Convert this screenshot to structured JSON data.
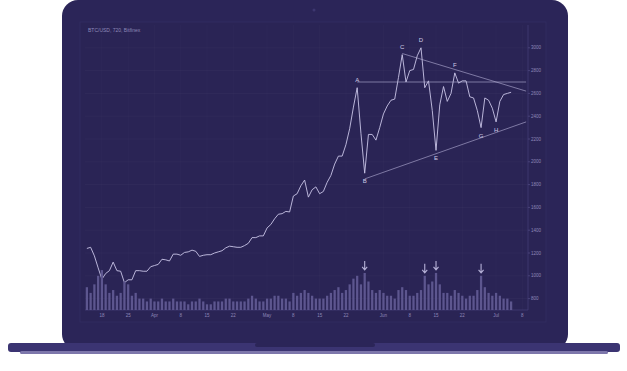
{
  "chart_data": {
    "type": "line",
    "title": "BTC/USD, 720, Bitfinex",
    "categories": [
      null,
      null,
      null,
      null,
      "18",
      null,
      null,
      null,
      null,
      null,
      null,
      "25",
      null,
      null,
      null,
      null,
      null,
      null,
      "Apr",
      null,
      null,
      null,
      null,
      null,
      null,
      "8",
      null,
      null,
      null,
      null,
      null,
      null,
      "15",
      null,
      null,
      null,
      null,
      null,
      null,
      "22",
      null,
      null,
      null,
      null,
      null,
      null,
      null,
      null,
      "May",
      null,
      null,
      null,
      null,
      null,
      null,
      "8",
      null,
      null,
      null,
      null,
      null,
      null,
      "15",
      null,
      null,
      null,
      null,
      null,
      null,
      "22",
      null,
      null,
      null,
      null,
      null,
      null,
      null,
      null,
      null,
      "Jun",
      null,
      null,
      null,
      null,
      null,
      null,
      "8",
      null,
      null,
      null,
      null,
      null,
      null,
      "15",
      null,
      null,
      null,
      null,
      null,
      null,
      "22",
      null,
      null,
      null,
      null,
      null,
      null,
      null,
      null,
      "Jul",
      null,
      null,
      null,
      null,
      null,
      null,
      "8",
      null
    ],
    "series": [
      {
        "type": "line",
        "color": "#c9c5e8",
        "values": [
          1240,
          1250,
          1175,
          1070,
          970,
          1020,
          1045,
          1120,
          1045,
          1040,
          940,
          965,
          965,
          1045,
          1045,
          1040,
          1040,
          1080,
          1090,
          1100,
          1145,
          1140,
          1130,
          1190,
          1190,
          1180,
          1205,
          1210,
          1225,
          1215,
          1170,
          1180,
          1185,
          1185,
          1200,
          1210,
          1220,
          1245,
          1260,
          1255,
          1250,
          1250,
          1265,
          1285,
          1335,
          1335,
          1350,
          1350,
          1420,
          1450,
          1500,
          1540,
          1545,
          1565,
          1560,
          1700,
          1720,
          1790,
          1840,
          1690,
          1755,
          1780,
          1720,
          1740,
          1820,
          1880,
          1980,
          2050,
          2050,
          2150,
          2290,
          2480,
          2650,
          2250,
          1900,
          2240,
          2240,
          2190,
          2300,
          2420,
          2490,
          2540,
          2550,
          2740,
          2940,
          2700,
          2800,
          2810,
          2930,
          3000,
          2650,
          2710,
          2450,
          2100,
          2500,
          2660,
          2530,
          2600,
          2780,
          2690,
          2710,
          2710,
          2570,
          2560,
          2450,
          2300,
          2560,
          2540,
          2470,
          2350,
          2530,
          2590,
          2600,
          2610,
          null,
          null,
          null,
          null
        ]
      },
      {
        "type": "bar",
        "color": "#5d568f",
        "axis": "y2",
        "values": [
          8,
          6,
          9,
          12,
          14,
          9,
          6,
          7,
          5,
          6,
          10,
          9,
          5,
          6,
          4,
          4,
          3,
          4,
          3,
          3,
          4,
          3,
          3,
          4,
          3,
          3,
          3,
          2,
          3,
          3,
          4,
          3,
          2,
          2,
          3,
          3,
          3,
          4,
          4,
          3,
          3,
          3,
          3,
          4,
          5,
          4,
          3,
          3,
          4,
          4,
          5,
          5,
          4,
          4,
          3,
          6,
          5,
          6,
          7,
          6,
          5,
          4,
          4,
          4,
          5,
          6,
          7,
          8,
          6,
          7,
          9,
          11,
          12,
          9,
          13,
          10,
          7,
          6,
          7,
          6,
          5,
          5,
          4,
          7,
          8,
          7,
          5,
          5,
          6,
          7,
          12,
          9,
          10,
          13,
          9,
          6,
          6,
          5,
          7,
          6,
          5,
          4,
          5,
          5,
          7,
          12,
          8,
          6,
          5,
          6,
          5,
          4,
          4,
          3,
          null,
          null,
          null,
          null
        ]
      }
    ],
    "ylim": [
      700,
      3200
    ],
    "yticks": [
      800,
      1000,
      1200,
      1400,
      1600,
      1800,
      2000,
      2200,
      2400,
      2600,
      2800,
      3000
    ],
    "y2lim": [
      0,
      100
    ],
    "y2ticks": [],
    "grid": true,
    "annotations": [
      {
        "text": "A",
        "x": 72,
        "y": 2650,
        "position": "above"
      },
      {
        "text": "B",
        "x": 74,
        "y": 1900,
        "position": "below"
      },
      {
        "text": "C",
        "x": 84,
        "y": 2940,
        "position": "above"
      },
      {
        "text": "D",
        "x": 89,
        "y": 3000,
        "position": "above"
      },
      {
        "text": "E",
        "x": 93,
        "y": 2100,
        "position": "below"
      },
      {
        "text": "F",
        "x": 98,
        "y": 2780,
        "position": "above"
      },
      {
        "text": "G",
        "x": 105,
        "y": 2300,
        "position": "below"
      },
      {
        "text": "H",
        "x": 109,
        "y": 2350,
        "position": "below"
      }
    ],
    "trendlines": [
      {
        "x": [
          72,
          117
        ],
        "y": [
          2700,
          2700
        ]
      },
      {
        "x": [
          84,
          117
        ],
        "y": [
          2950,
          2620
        ]
      },
      {
        "x": [
          74,
          117
        ],
        "y": [
          1850,
          2350
        ]
      }
    ],
    "arrows": {
      "x": [
        74,
        90,
        93,
        105
      ]
    }
  }
}
